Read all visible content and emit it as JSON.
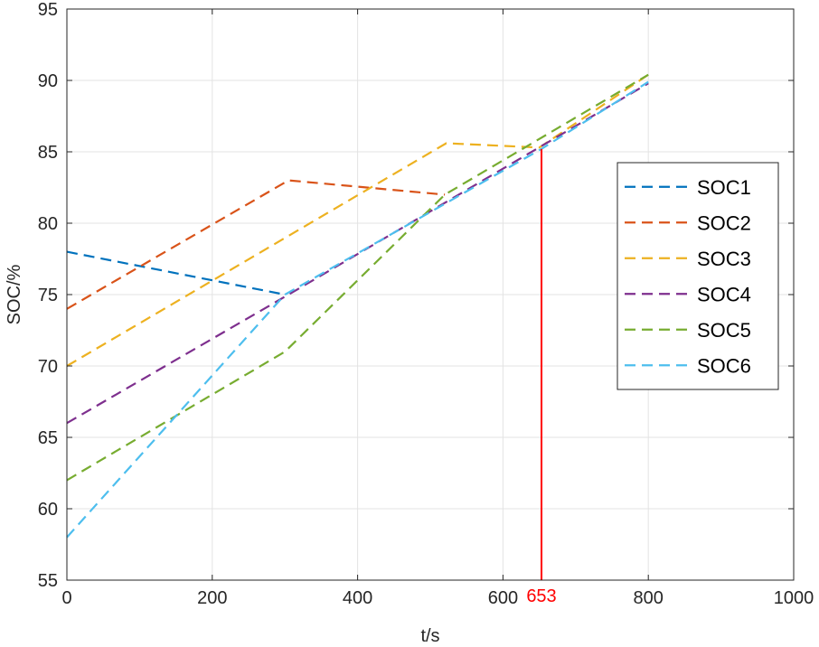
{
  "chart_data": {
    "type": "line",
    "title": "",
    "xlabel": "t/s",
    "ylabel": "SOC/%",
    "xlim": [
      0,
      1000
    ],
    "ylim": [
      55,
      95
    ],
    "xticks": [
      0,
      200,
      400,
      600,
      800,
      1000
    ],
    "yticks": [
      55,
      60,
      65,
      70,
      75,
      80,
      85,
      90,
      95
    ],
    "grid": true,
    "legend_position": "right",
    "series": [
      {
        "name": "SOC1",
        "color": "#0072BD",
        "x": [
          0,
          300
        ],
        "y": [
          78,
          75
        ]
      },
      {
        "name": "SOC2",
        "color": "#D95319",
        "x": [
          0,
          305,
          520
        ],
        "y": [
          74,
          83,
          82
        ]
      },
      {
        "name": "SOC3",
        "color": "#EDB120",
        "x": [
          0,
          522,
          650,
          800
        ],
        "y": [
          70,
          85.6,
          85.3,
          90.4
        ]
      },
      {
        "name": "SOC4",
        "color": "#7E2F8E",
        "x": [
          0,
          305,
          800
        ],
        "y": [
          66,
          75,
          89.8
        ]
      },
      {
        "name": "SOC5",
        "color": "#77AC30",
        "x": [
          0,
          300,
          520,
          800
        ],
        "y": [
          62,
          71,
          82,
          90.4
        ]
      },
      {
        "name": "SOC6",
        "color": "#4DBEEE",
        "x": [
          0,
          300,
          653,
          800
        ],
        "y": [
          58,
          75,
          85.2,
          89.9
        ]
      }
    ],
    "annotations": [
      {
        "type": "vline",
        "x": 653,
        "y_top": 85.2,
        "color": "#FF0000",
        "label": "653"
      }
    ]
  }
}
